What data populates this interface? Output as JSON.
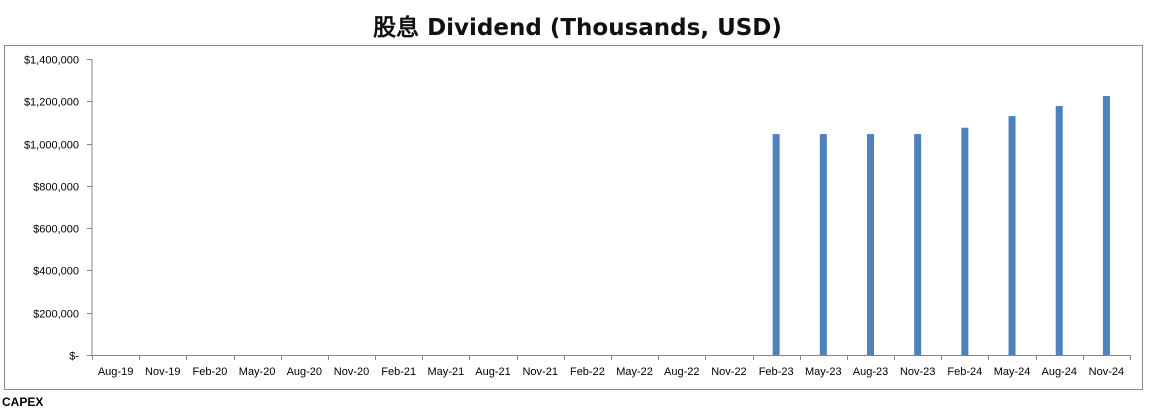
{
  "chart_data": {
    "type": "bar",
    "title": "股息 Dividend (Thousands, USD)",
    "categories": [
      "Aug-19",
      "Nov-19",
      "Feb-20",
      "May-20",
      "Aug-20",
      "Nov-20",
      "Feb-21",
      "May-21",
      "Aug-21",
      "Nov-21",
      "Feb-22",
      "May-22",
      "Aug-22",
      "Nov-22",
      "Feb-23",
      "May-23",
      "Aug-23",
      "Nov-23",
      "Feb-24",
      "May-24",
      "Aug-24",
      "Nov-24"
    ],
    "values": [
      0,
      0,
      0,
      0,
      0,
      0,
      0,
      0,
      0,
      0,
      0,
      0,
      0,
      0,
      1045000,
      1045000,
      1045000,
      1045000,
      1075000,
      1130000,
      1178000,
      1225000
    ],
    "ylim": [
      0,
      1400000
    ],
    "yticks": [
      0,
      200000,
      400000,
      600000,
      800000,
      1000000,
      1200000,
      1400000
    ],
    "ytick_labels": [
      "$-",
      "$200,000",
      "$400,000",
      "$600,000",
      "$800,000",
      "$1,000,000",
      "$1,200,000",
      "$1,400,000"
    ],
    "xlabel": "",
    "ylabel": "",
    "bar_color": "#4f81bd",
    "axis_color": "#868686",
    "grid": false,
    "legend": "none"
  },
  "footer_text": "CAPEX"
}
